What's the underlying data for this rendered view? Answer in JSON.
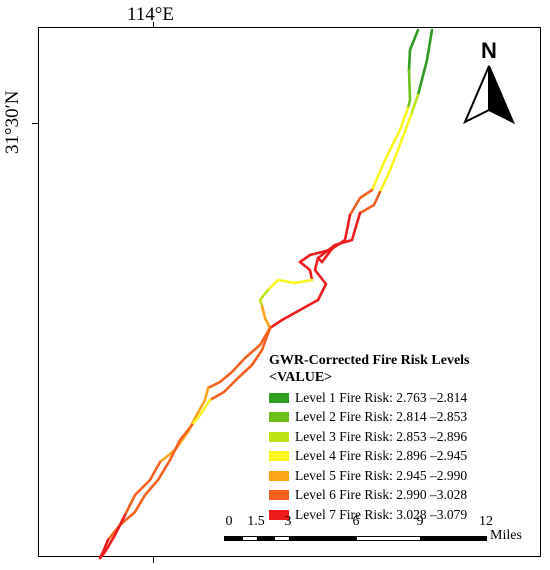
{
  "graticule": {
    "longitude": "114°E",
    "latitude": "31°30′N"
  },
  "north_arrow": {
    "label": "N"
  },
  "legend": {
    "title": "GWR-Corrected Fire Risk Levels",
    "subtitle": "<VALUE>",
    "items": [
      {
        "label": "Level 1 Fire Risk: 2.763 –2.814",
        "color": "#2e9e1f"
      },
      {
        "label": "Level 2 Fire Risk: 2.814 –2.853",
        "color": "#6cc219"
      },
      {
        "label": "Level 3 Fire Risk: 2.853 –2.896",
        "color": "#bde417"
      },
      {
        "label": "Level 4 Fire Risk: 2.896 –2.945",
        "color": "#fbf51f"
      },
      {
        "label": "Level 5 Fire Risk: 2.945 –2.990",
        "color": "#fba51c"
      },
      {
        "label": "Level 6 Fire Risk: 2.990 –3.028",
        "color": "#f6601f"
      },
      {
        "label": "Level 7 Fire Risk: 3.028 –3.079",
        "color": "#ee1c1c"
      }
    ]
  },
  "scale_bar": {
    "ticks": [
      "0",
      "1.5",
      "3",
      "6",
      "9",
      "12"
    ],
    "units": "Miles"
  }
}
